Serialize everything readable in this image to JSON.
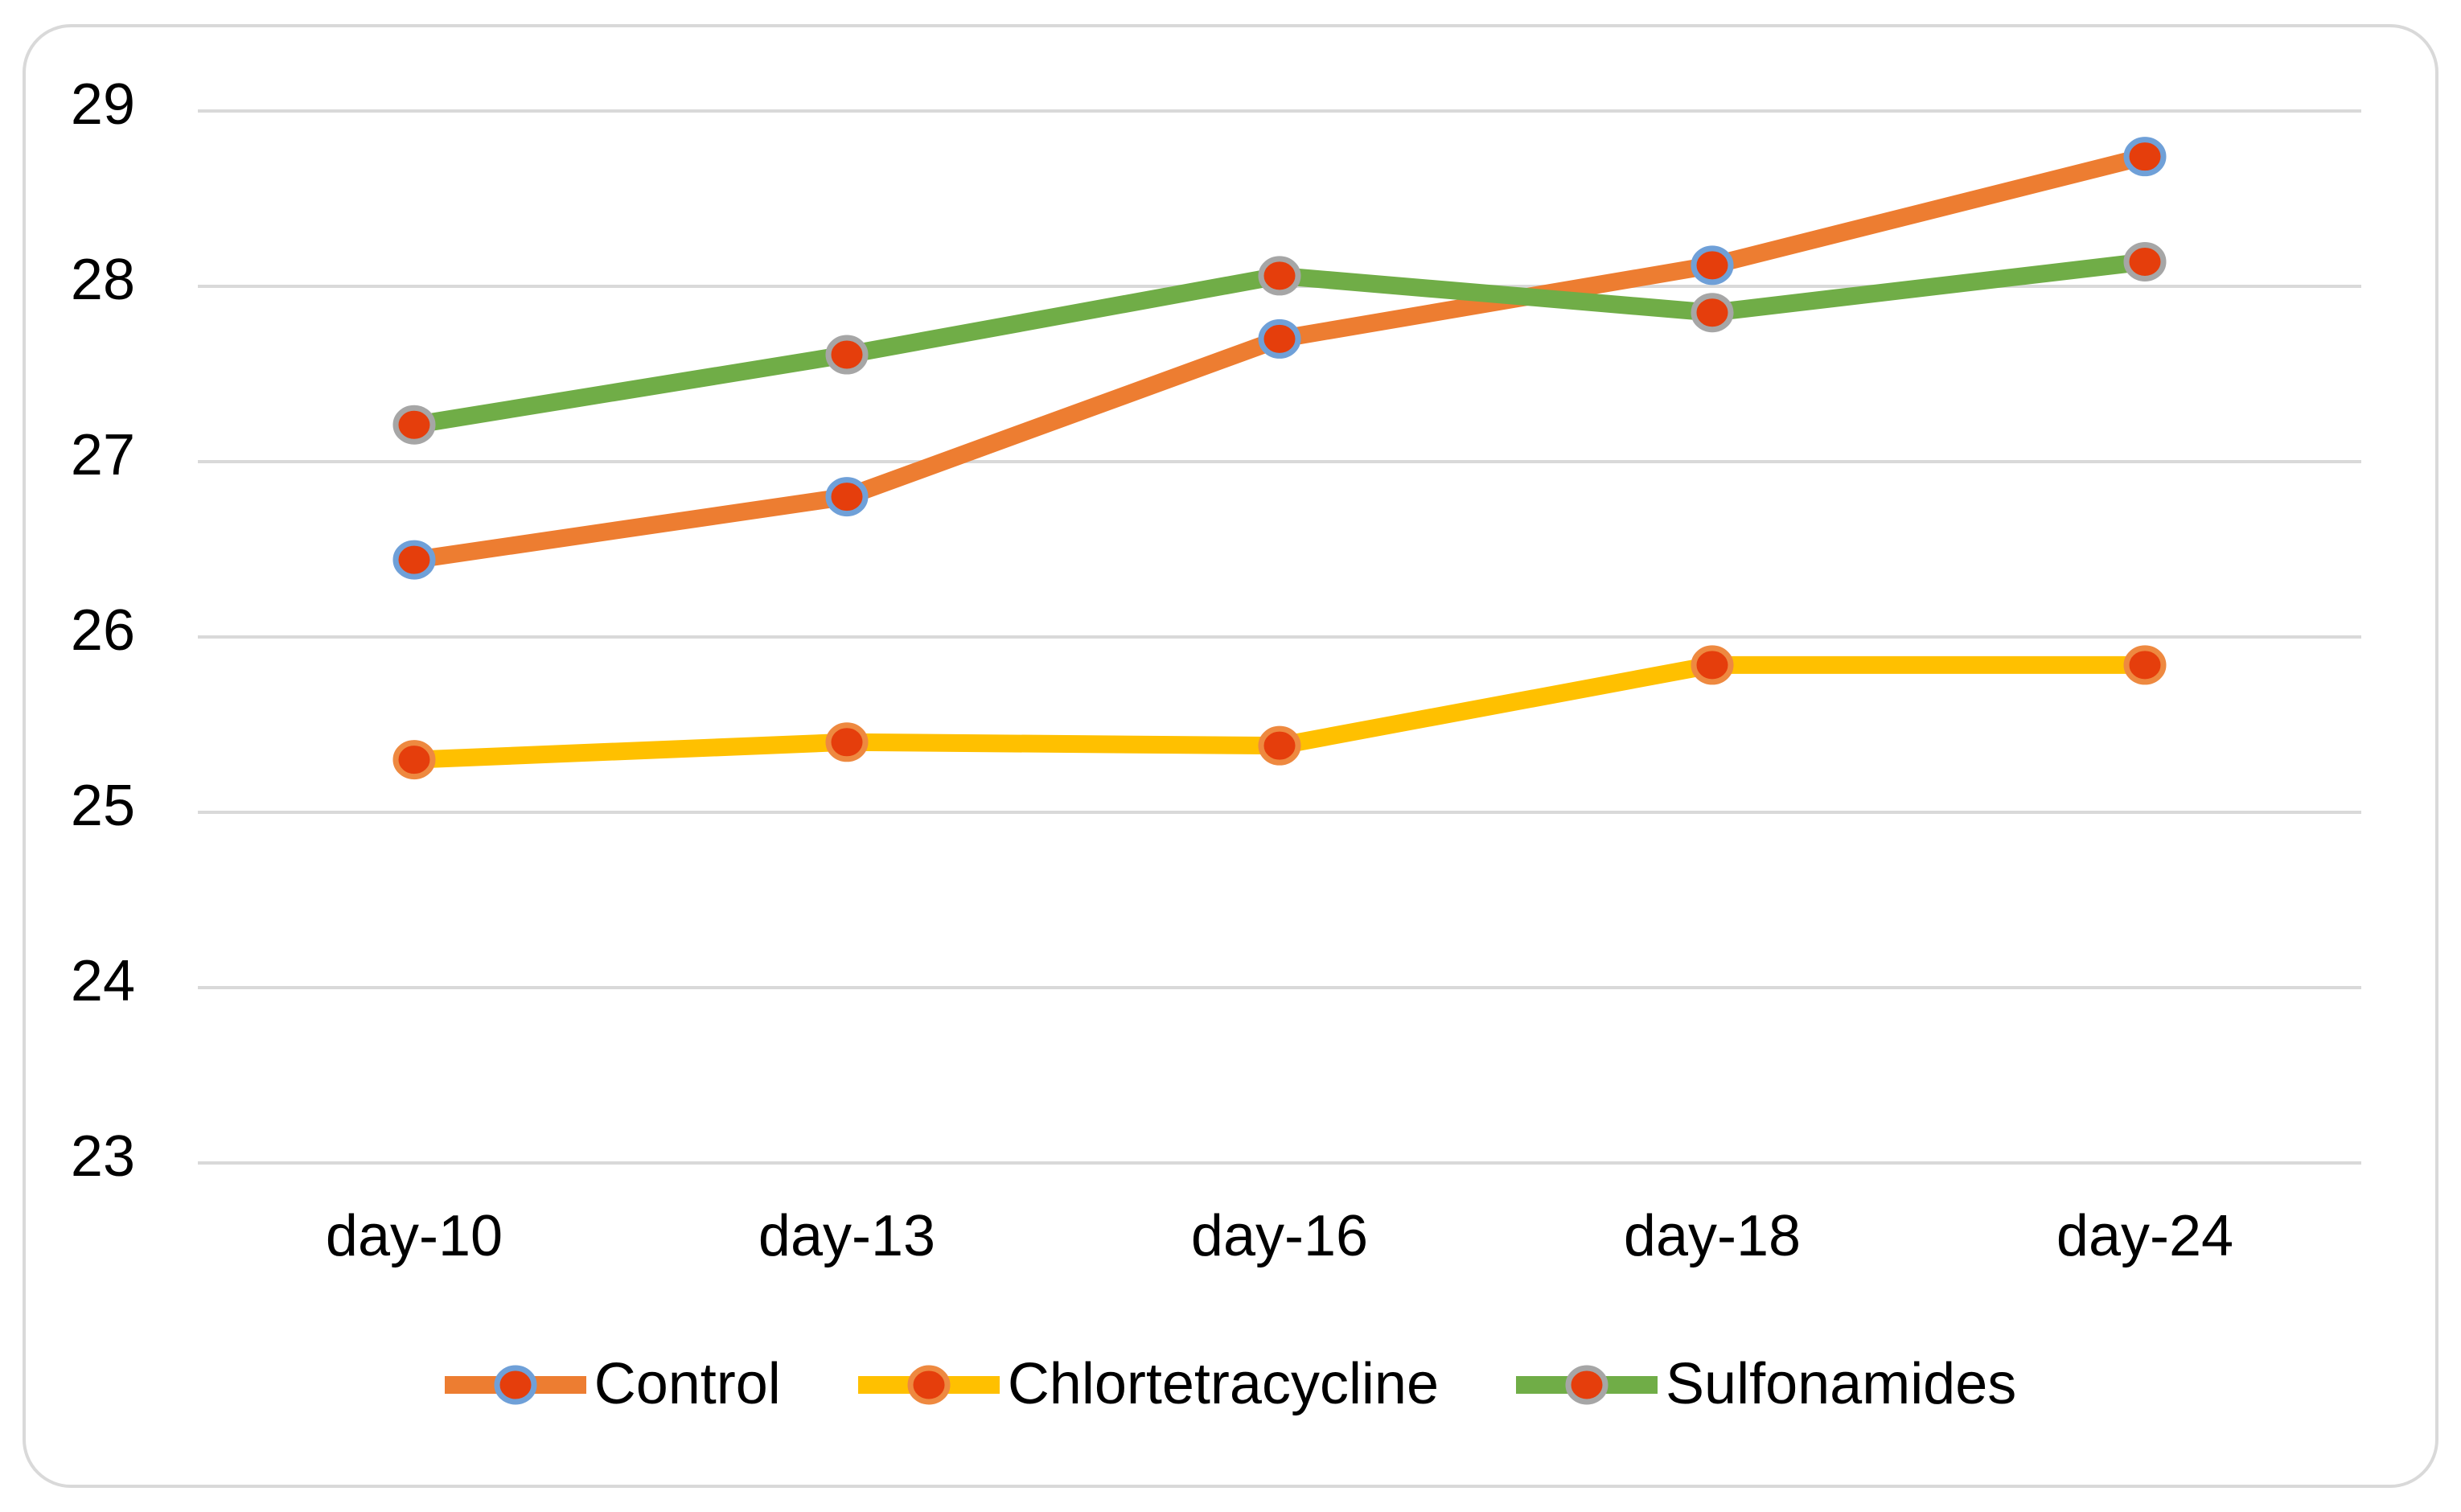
{
  "chart_data": {
    "type": "line",
    "title": "",
    "xlabel": "",
    "ylabel": "",
    "categories": [
      "day-10",
      "day-13",
      "day-16",
      "day-18",
      "day-24"
    ],
    "series": [
      {
        "name": "Control",
        "line_color": "#ED7D31",
        "marker_fill": "#E53E0C",
        "marker_border": "#6FA0D8",
        "values": [
          26.44,
          26.8,
          27.7,
          28.12,
          28.74
        ]
      },
      {
        "name": "Chlortetracycline",
        "line_color": "#FFC000",
        "marker_fill": "#E53E0C",
        "marker_border": "#EE8940",
        "values": [
          25.3,
          25.4,
          25.38,
          25.84,
          25.84
        ]
      },
      {
        "name": "Sulfonamides",
        "line_color": "#70AD47",
        "marker_fill": "#E53E0C",
        "marker_border": "#A6A6A6",
        "values": [
          27.21,
          27.61,
          28.06,
          27.85,
          28.14
        ]
      }
    ],
    "ylim": [
      23,
      29
    ],
    "yticks": [
      29,
      28,
      27,
      26,
      25,
      24,
      23
    ],
    "grid": "horizontal",
    "legend_position": "bottom",
    "colors": {
      "background": "#FFFFFF",
      "frame": "#D9D9D9",
      "gridline": "#D9D9D9",
      "text": "#000000"
    }
  }
}
